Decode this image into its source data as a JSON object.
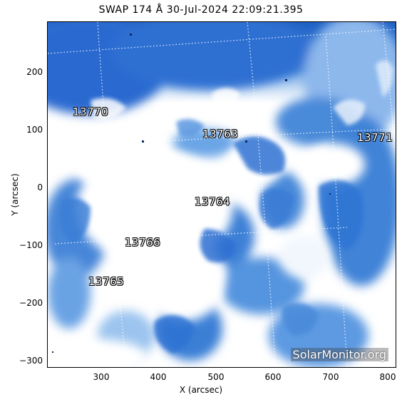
{
  "title": "SWAP 174 Å 30-Jul-2024 22:09:21.395",
  "axes": {
    "xlabel": "X (arcsec)",
    "ylabel": "Y (arcsec)",
    "xticks": [
      "300",
      "400",
      "500",
      "600",
      "700",
      "800"
    ],
    "yticks": [
      "200",
      "100",
      "0",
      "−100",
      "−200",
      "−300"
    ]
  },
  "regions": [
    "13770",
    "13763",
    "13771",
    "13764",
    "13766",
    "13765"
  ],
  "watermark": "SolarMonitor.org",
  "colors": {
    "dark_blue": "#1f63c8",
    "mid_blue": "#5a9be6",
    "light_blue": "#a9cdf2",
    "white": "#ffffff"
  }
}
